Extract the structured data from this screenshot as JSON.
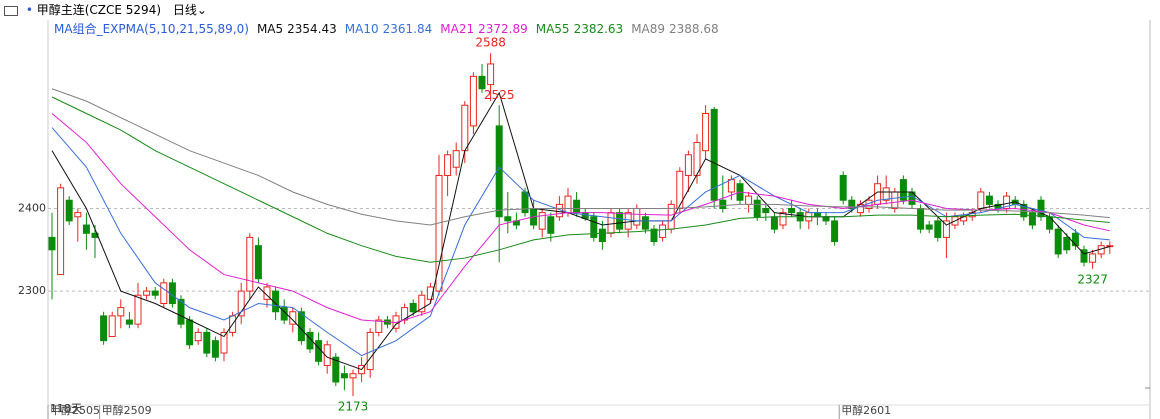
{
  "header": {
    "instrument": "甲醇主连(CZCE 5294)",
    "period": "日线"
  },
  "chart_data": {
    "type": "candlestick",
    "indicator": "MA组合_EXPMA(5,10,21,55,89,0)",
    "bottom_left_text": "118天",
    "up_color": "#e8261e",
    "down_color": "#0a8c0a",
    "ylim": [
      2150,
      2650
    ],
    "yticks": [
      2300,
      2400
    ],
    "grid": true,
    "categories": [
      "甲醇2505",
      null,
      null,
      null,
      null,
      null,
      "甲醇2509",
      null,
      null,
      null,
      null,
      null,
      null,
      null,
      null,
      null,
      null,
      null,
      null,
      null,
      null,
      null,
      null,
      null,
      null,
      null,
      null,
      null,
      null,
      null,
      null,
      null,
      null,
      null,
      null,
      null,
      null,
      null,
      null,
      null,
      null,
      null,
      null,
      null,
      null,
      null,
      null,
      null,
      null,
      null,
      null,
      null,
      null,
      null,
      null,
      null,
      null,
      null,
      null,
      null,
      null,
      null,
      null,
      null,
      null,
      null,
      null,
      null,
      null,
      null,
      null,
      null,
      null,
      null,
      null,
      null,
      null,
      null,
      null,
      null,
      null,
      null,
      null,
      null,
      null,
      null,
      null,
      null,
      null,
      null,
      null,
      null,
      "甲醇2601",
      null,
      null,
      null,
      null,
      null,
      null,
      null,
      null,
      null,
      null,
      null,
      null,
      null,
      null,
      null,
      null,
      null,
      null,
      null,
      null,
      null,
      null,
      null,
      null,
      null,
      null,
      null,
      null,
      null,
      null
    ],
    "ohlc": [
      [
        2365,
        2395,
        2290,
        2350
      ],
      [
        2320,
        2430,
        2320,
        2425
      ],
      [
        2410,
        2415,
        2380,
        2385
      ],
      [
        2390,
        2400,
        2360,
        2395
      ],
      [
        2380,
        2395,
        2350,
        2370
      ],
      [
        2370,
        2380,
        2340,
        2365
      ],
      [
        2270,
        2275,
        2235,
        2240
      ],
      [
        2245,
        2275,
        2245,
        2270
      ],
      [
        2270,
        2290,
        2255,
        2280
      ],
      [
        2265,
        2275,
        2255,
        2260
      ],
      [
        2260,
        2310,
        2255,
        2295
      ],
      [
        2295,
        2305,
        2290,
        2300
      ],
      [
        2300,
        2305,
        2290,
        2295
      ],
      [
        2285,
        2315,
        2280,
        2310
      ],
      [
        2310,
        2315,
        2280,
        2285
      ],
      [
        2290,
        2295,
        2255,
        2260
      ],
      [
        2265,
        2270,
        2230,
        2235
      ],
      [
        2240,
        2255,
        2235,
        2250
      ],
      [
        2250,
        2255,
        2220,
        2225
      ],
      [
        2240,
        2245,
        2215,
        2220
      ],
      [
        2225,
        2255,
        2215,
        2250
      ],
      [
        2250,
        2275,
        2245,
        2270
      ],
      [
        2270,
        2310,
        2260,
        2300
      ],
      [
        2300,
        2370,
        2290,
        2365
      ],
      [
        2355,
        2365,
        2310,
        2315
      ],
      [
        2290,
        2310,
        2280,
        2305
      ],
      [
        2300,
        2305,
        2265,
        2275
      ],
      [
        2280,
        2290,
        2260,
        2265
      ],
      [
        2260,
        2280,
        2250,
        2275
      ],
      [
        2275,
        2280,
        2235,
        2240
      ],
      [
        2250,
        2255,
        2225,
        2230
      ],
      [
        2240,
        2250,
        2210,
        2215
      ],
      [
        2210,
        2240,
        2200,
        2235
      ],
      [
        2220,
        2225,
        2185,
        2190
      ],
      [
        2200,
        2210,
        2180,
        2195
      ],
      [
        2195,
        2205,
        2173,
        2200
      ],
      [
        2200,
        2220,
        2190,
        2210
      ],
      [
        2205,
        2255,
        2195,
        2250
      ],
      [
        2250,
        2270,
        2245,
        2265
      ],
      [
        2265,
        2270,
        2255,
        2260
      ],
      [
        2255,
        2275,
        2250,
        2270
      ],
      [
        2265,
        2285,
        2260,
        2280
      ],
      [
        2285,
        2290,
        2270,
        2275
      ],
      [
        2275,
        2300,
        2270,
        2295
      ],
      [
        2290,
        2310,
        2285,
        2305
      ],
      [
        2300,
        2465,
        2295,
        2440
      ],
      [
        2440,
        2470,
        2415,
        2465
      ],
      [
        2450,
        2480,
        2440,
        2470
      ],
      [
        2470,
        2530,
        2455,
        2525
      ],
      [
        2500,
        2565,
        2490,
        2560
      ],
      [
        2560,
        2575,
        2540,
        2545
      ],
      [
        2550,
        2588,
        2530,
        2575
      ],
      [
        2500,
        2525,
        2335,
        2390
      ],
      [
        2390,
        2420,
        2370,
        2385
      ],
      [
        2385,
        2395,
        2375,
        2380
      ],
      [
        2420,
        2425,
        2390,
        2395
      ],
      [
        2400,
        2410,
        2375,
        2380
      ],
      [
        2375,
        2400,
        2365,
        2395
      ],
      [
        2390,
        2395,
        2360,
        2370
      ],
      [
        2390,
        2415,
        2385,
        2405
      ],
      [
        2395,
        2425,
        2390,
        2415
      ],
      [
        2410,
        2420,
        2390,
        2395
      ],
      [
        2395,
        2400,
        2385,
        2388
      ],
      [
        2390,
        2395,
        2360,
        2365
      ],
      [
        2375,
        2385,
        2350,
        2360
      ],
      [
        2370,
        2400,
        2365,
        2395
      ],
      [
        2395,
        2400,
        2370,
        2375
      ],
      [
        2375,
        2400,
        2365,
        2395
      ],
      [
        2380,
        2405,
        2375,
        2400
      ],
      [
        2390,
        2395,
        2370,
        2375
      ],
      [
        2375,
        2380,
        2355,
        2360
      ],
      [
        2365,
        2385,
        2360,
        2380
      ],
      [
        2375,
        2410,
        2370,
        2405
      ],
      [
        2400,
        2450,
        2395,
        2445
      ],
      [
        2440,
        2470,
        2420,
        2465
      ],
      [
        2440,
        2490,
        2430,
        2480
      ],
      [
        2470,
        2525,
        2460,
        2515
      ],
      [
        2520,
        2523,
        2400,
        2410
      ],
      [
        2410,
        2440,
        2395,
        2400
      ],
      [
        2420,
        2440,
        2410,
        2435
      ],
      [
        2430,
        2435,
        2405,
        2410
      ],
      [
        2405,
        2420,
        2395,
        2415
      ],
      [
        2410,
        2415,
        2385,
        2390
      ],
      [
        2400,
        2405,
        2385,
        2395
      ],
      [
        2390,
        2395,
        2370,
        2375
      ],
      [
        2380,
        2400,
        2375,
        2395
      ],
      [
        2400,
        2410,
        2390,
        2395
      ],
      [
        2395,
        2400,
        2375,
        2385
      ],
      [
        2385,
        2400,
        2375,
        2395
      ],
      [
        2395,
        2400,
        2380,
        2390
      ],
      [
        2390,
        2395,
        2380,
        2385
      ],
      [
        2385,
        2390,
        2355,
        2360
      ],
      [
        2440,
        2445,
        2405,
        2410
      ],
      [
        2410,
        2415,
        2395,
        2400
      ],
      [
        2395,
        2410,
        2390,
        2405
      ],
      [
        2400,
        2415,
        2395,
        2410
      ],
      [
        2405,
        2440,
        2400,
        2430
      ],
      [
        2410,
        2440,
        2405,
        2425
      ],
      [
        2400,
        2425,
        2395,
        2420
      ],
      [
        2435,
        2440,
        2405,
        2410
      ],
      [
        2420,
        2425,
        2400,
        2405
      ],
      [
        2400,
        2405,
        2370,
        2375
      ],
      [
        2380,
        2385,
        2370,
        2375
      ],
      [
        2385,
        2390,
        2360,
        2365
      ],
      [
        2365,
        2395,
        2340,
        2385
      ],
      [
        2380,
        2395,
        2375,
        2390
      ],
      [
        2385,
        2395,
        2380,
        2390
      ],
      [
        2390,
        2400,
        2385,
        2395
      ],
      [
        2400,
        2425,
        2395,
        2420
      ],
      [
        2415,
        2420,
        2400,
        2405
      ],
      [
        2405,
        2410,
        2395,
        2400
      ],
      [
        2400,
        2420,
        2395,
        2415
      ],
      [
        2410,
        2415,
        2400,
        2405
      ],
      [
        2405,
        2410,
        2385,
        2390
      ],
      [
        2395,
        2400,
        2375,
        2380
      ],
      [
        2410,
        2415,
        2385,
        2390
      ],
      [
        2390,
        2395,
        2370,
        2375
      ],
      [
        2375,
        2380,
        2340,
        2345
      ],
      [
        2365,
        2370,
        2345,
        2350
      ],
      [
        2370,
        2375,
        2350,
        2355
      ],
      [
        2350,
        2355,
        2330,
        2335
      ],
      [
        2335,
        2350,
        2327,
        2345
      ],
      [
        2345,
        2360,
        2340,
        2355
      ],
      [
        2354,
        2360,
        2345,
        2355
      ]
    ],
    "high_labels": [
      2588,
      2525
    ],
    "low_labels": [
      2173,
      2327
    ],
    "series": [
      {
        "name": "MA5",
        "legend_value": 2354.43,
        "color": "#111111",
        "x": [
          0,
          4,
          8,
          12,
          16,
          20,
          24,
          28,
          32,
          36,
          40,
          44,
          48,
          52,
          56,
          60,
          64,
          68,
          72,
          76,
          80,
          84,
          88,
          92,
          96,
          100,
          104,
          108,
          112,
          116,
          120,
          123
        ],
        "values": [
          2470,
          2400,
          2300,
          2285,
          2265,
          2245,
          2305,
          2265,
          2220,
          2205,
          2260,
          2285,
          2470,
          2540,
          2400,
          2395,
          2380,
          2385,
          2385,
          2460,
          2440,
          2395,
          2390,
          2390,
          2420,
          2420,
          2380,
          2400,
          2408,
          2390,
          2345,
          2354
        ]
      },
      {
        "name": "MA10",
        "legend_value": 2361.84,
        "color": "#3a6fd8",
        "x": [
          0,
          4,
          8,
          12,
          16,
          20,
          24,
          28,
          32,
          36,
          40,
          44,
          48,
          52,
          56,
          60,
          64,
          68,
          72,
          76,
          80,
          84,
          88,
          92,
          96,
          100,
          104,
          108,
          112,
          116,
          120,
          123
        ],
        "values": [
          2498,
          2450,
          2370,
          2310,
          2280,
          2265,
          2285,
          2280,
          2250,
          2222,
          2240,
          2270,
          2380,
          2450,
          2410,
          2395,
          2390,
          2385,
          2385,
          2420,
          2440,
          2415,
          2395,
          2395,
          2410,
          2415,
          2390,
          2395,
          2405,
          2395,
          2365,
          2362
        ]
      },
      {
        "name": "MA21",
        "legend_value": 2372.89,
        "color": "#e020d0",
        "x": [
          0,
          4,
          8,
          12,
          16,
          20,
          24,
          28,
          32,
          36,
          40,
          44,
          48,
          52,
          56,
          60,
          64,
          68,
          72,
          76,
          80,
          84,
          88,
          92,
          96,
          100,
          104,
          108,
          112,
          116,
          120,
          123
        ],
        "values": [
          2515,
          2480,
          2430,
          2390,
          2350,
          2320,
          2310,
          2300,
          2280,
          2265,
          2262,
          2275,
          2330,
          2380,
          2390,
          2395,
          2395,
          2393,
          2392,
          2405,
          2420,
          2415,
          2405,
          2400,
          2405,
          2410,
          2400,
          2398,
          2400,
          2395,
          2380,
          2373
        ]
      },
      {
        "name": "MA55",
        "legend_value": 2382.63,
        "color": "#1a8a1a",
        "x": [
          0,
          4,
          8,
          12,
          16,
          20,
          24,
          28,
          32,
          36,
          40,
          44,
          48,
          52,
          56,
          60,
          64,
          68,
          72,
          76,
          80,
          84,
          88,
          92,
          96,
          100,
          104,
          108,
          112,
          116,
          120,
          123
        ],
        "values": [
          2535,
          2515,
          2495,
          2470,
          2450,
          2430,
          2410,
          2390,
          2370,
          2355,
          2342,
          2335,
          2340,
          2350,
          2362,
          2368,
          2370,
          2372,
          2375,
          2380,
          2388,
          2390,
          2390,
          2390,
          2392,
          2392,
          2390,
          2392,
          2393,
          2390,
          2386,
          2383
        ]
      },
      {
        "name": "MA89",
        "legend_value": 2388.68,
        "color": "#808080",
        "x": [
          0,
          4,
          8,
          12,
          16,
          20,
          24,
          28,
          32,
          36,
          40,
          44,
          48,
          52,
          56,
          60,
          64,
          68,
          72,
          76,
          80,
          84,
          88,
          92,
          96,
          100,
          104,
          108,
          112,
          116,
          120,
          123
        ],
        "values": [
          2545,
          2530,
          2510,
          2490,
          2470,
          2455,
          2440,
          2420,
          2405,
          2393,
          2385,
          2380,
          2390,
          2398,
          2400,
          2400,
          2400,
          2400,
          2400,
          2402,
          2405,
          2405,
          2403,
          2402,
          2402,
          2400,
          2398,
          2398,
          2397,
          2395,
          2392,
          2389
        ]
      }
    ]
  }
}
